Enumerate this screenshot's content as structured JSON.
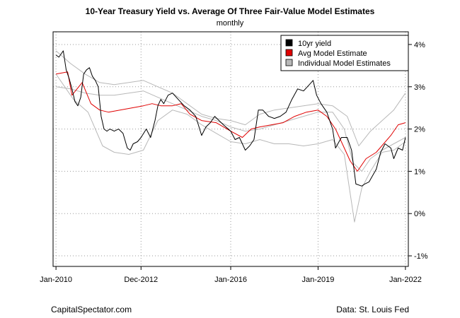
{
  "chart_data": {
    "type": "line",
    "title": "10-Year Treasury Yield vs. Average Of Three Fair-Value Model Estimates",
    "subtitle": "monthly",
    "xlabel": "",
    "ylabel": "",
    "x_ticks": [
      "Jan-2010",
      "Dec-2012",
      "Jan-2016",
      "Jan-2019",
      "Jan-2022"
    ],
    "x_tick_pos": [
      2010.0,
      2012.92,
      2016.0,
      2019.0,
      2022.0
    ],
    "xlim": [
      2009.9,
      2022.1
    ],
    "y_ticks": [
      "4%",
      "3%",
      "2%",
      "1%",
      "0%",
      "-1%"
    ],
    "y_tick_vals": [
      4,
      3,
      2,
      1,
      0,
      -1
    ],
    "ylim": [
      -1.25,
      4.3
    ],
    "grid": true,
    "legend_position": "top-right",
    "legend": [
      {
        "label": "10yr yield",
        "color": "#000000"
      },
      {
        "label": "Avg Model Estimate",
        "color": "#e00000"
      },
      {
        "label": "Individual Model Estimates",
        "color": "#b8b8b8"
      }
    ],
    "colors": {
      "yield": "#000000",
      "avg": "#e00000",
      "individual": "#b8b8b8"
    },
    "series": [
      {
        "name": "10yr yield",
        "color": "#000000",
        "x": [
          2010.0,
          2010.1,
          2010.25,
          2010.35,
          2010.45,
          2010.55,
          2010.65,
          2010.75,
          2010.85,
          2010.95,
          2011.05,
          2011.15,
          2011.25,
          2011.35,
          2011.45,
          2011.55,
          2011.65,
          2011.75,
          2011.85,
          2012.0,
          2012.15,
          2012.3,
          2012.45,
          2012.55,
          2012.65,
          2012.8,
          2012.92,
          2013.1,
          2013.25,
          2013.4,
          2013.5,
          2013.6,
          2013.7,
          2013.85,
          2014.0,
          2014.2,
          2014.4,
          2014.6,
          2014.8,
          2015.0,
          2015.15,
          2015.3,
          2015.45,
          2015.6,
          2015.75,
          2016.0,
          2016.15,
          2016.3,
          2016.5,
          2016.65,
          2016.8,
          2016.95,
          2017.1,
          2017.3,
          2017.5,
          2017.7,
          2017.9,
          2018.1,
          2018.3,
          2018.5,
          2018.7,
          2018.83,
          2018.95,
          2019.1,
          2019.3,
          2019.5,
          2019.6,
          2019.8,
          2020.0,
          2020.15,
          2020.3,
          2020.5,
          2020.6,
          2020.75,
          2021.0,
          2021.15,
          2021.3,
          2021.5,
          2021.6,
          2021.75,
          2021.9,
          2022.0
        ],
        "y": [
          3.75,
          3.7,
          3.85,
          3.4,
          3.2,
          2.95,
          2.65,
          2.55,
          2.75,
          3.3,
          3.4,
          3.45,
          3.25,
          3.15,
          3.0,
          2.3,
          2.0,
          1.95,
          2.0,
          1.95,
          2.0,
          1.9,
          1.55,
          1.5,
          1.65,
          1.7,
          1.8,
          2.0,
          1.8,
          2.2,
          2.55,
          2.7,
          2.6,
          2.8,
          2.85,
          2.7,
          2.55,
          2.45,
          2.3,
          1.85,
          2.05,
          2.15,
          2.3,
          2.2,
          2.1,
          1.95,
          1.75,
          1.8,
          1.5,
          1.6,
          1.75,
          2.45,
          2.45,
          2.3,
          2.25,
          2.3,
          2.4,
          2.7,
          2.95,
          2.9,
          3.05,
          3.15,
          2.8,
          2.6,
          2.4,
          2.0,
          1.55,
          1.8,
          1.8,
          1.5,
          0.7,
          0.65,
          0.7,
          0.75,
          1.05,
          1.45,
          1.65,
          1.55,
          1.3,
          1.55,
          1.5,
          1.8
        ]
      },
      {
        "name": "Avg Model Estimate",
        "color": "#e00000",
        "x": [
          2010.0,
          2010.4,
          2010.55,
          2010.9,
          2011.2,
          2011.5,
          2011.8,
          2012.2,
          2012.6,
          2013.0,
          2013.3,
          2013.6,
          2014.0,
          2014.3,
          2014.6,
          2015.0,
          2015.5,
          2016.0,
          2016.4,
          2016.7,
          2017.0,
          2017.4,
          2017.8,
          2018.2,
          2018.6,
          2019.0,
          2019.3,
          2019.6,
          2019.9,
          2020.1,
          2020.35,
          2020.65,
          2021.0,
          2021.25,
          2021.5,
          2021.75,
          2022.0
        ],
        "y": [
          3.3,
          3.35,
          2.8,
          3.1,
          2.6,
          2.45,
          2.4,
          2.45,
          2.5,
          2.55,
          2.6,
          2.55,
          2.55,
          2.6,
          2.35,
          2.2,
          2.15,
          1.95,
          1.8,
          2.0,
          2.05,
          2.1,
          2.15,
          2.3,
          2.4,
          2.45,
          2.3,
          2.0,
          1.55,
          1.25,
          1.0,
          1.3,
          1.45,
          1.65,
          1.85,
          2.1,
          2.15
        ]
      },
      {
        "name": "",
        "color": "#b8b8b8",
        "x": [
          2010.0,
          2010.5,
          2011.0,
          2011.5,
          2012.0,
          2012.5,
          2013.0,
          2013.5,
          2014.0,
          2014.5,
          2015.0,
          2015.5,
          2016.0,
          2016.5,
          2017.0,
          2017.5,
          2018.0,
          2018.5,
          2019.0,
          2019.5,
          2020.0,
          2020.4,
          2020.8,
          2021.2,
          2021.6,
          2022.0
        ],
        "y": [
          3.85,
          3.55,
          3.3,
          3.1,
          3.05,
          3.1,
          3.15,
          3.0,
          2.85,
          2.6,
          2.35,
          2.25,
          2.2,
          2.1,
          2.35,
          2.45,
          2.5,
          2.55,
          2.6,
          2.55,
          2.3,
          1.6,
          1.95,
          2.2,
          2.45,
          2.85
        ]
      },
      {
        "name": "",
        "color": "#b8b8b8",
        "x": [
          2010.0,
          2010.5,
          2011.0,
          2011.5,
          2012.0,
          2012.5,
          2013.0,
          2013.5,
          2014.0,
          2014.5,
          2015.0,
          2015.5,
          2016.0,
          2016.5,
          2017.0,
          2017.5,
          2018.0,
          2018.5,
          2019.0,
          2019.5,
          2019.9,
          2020.2,
          2020.5,
          2020.8,
          2021.2,
          2021.6,
          2022.0
        ],
        "y": [
          3.0,
          2.95,
          2.85,
          2.8,
          2.8,
          2.85,
          2.9,
          2.75,
          2.6,
          2.45,
          2.3,
          2.2,
          2.05,
          1.95,
          2.0,
          2.1,
          2.2,
          2.3,
          2.4,
          2.4,
          2.0,
          1.2,
          1.0,
          1.3,
          1.5,
          1.65,
          1.8
        ]
      },
      {
        "name": "",
        "color": "#b8b8b8",
        "x": [
          2010.0,
          2010.6,
          2011.1,
          2011.6,
          2012.0,
          2012.5,
          2013.0,
          2013.5,
          2014.0,
          2014.5,
          2015.0,
          2015.5,
          2016.0,
          2016.5,
          2017.0,
          2017.5,
          2018.0,
          2018.5,
          2019.0,
          2019.5,
          2019.9,
          2020.25,
          2020.5,
          2020.8,
          2021.2,
          2021.6,
          2022.0
        ],
        "y": [
          3.3,
          2.7,
          2.4,
          1.6,
          1.45,
          1.4,
          1.5,
          2.2,
          2.45,
          2.35,
          2.1,
          1.9,
          1.7,
          1.65,
          1.75,
          1.65,
          1.65,
          1.6,
          1.65,
          1.75,
          1.4,
          -0.2,
          0.6,
          1.0,
          1.45,
          1.5,
          1.7
        ]
      }
    ]
  },
  "footer": {
    "left": "CapitalSpectator.com",
    "right": "Data: St. Louis Fed"
  }
}
